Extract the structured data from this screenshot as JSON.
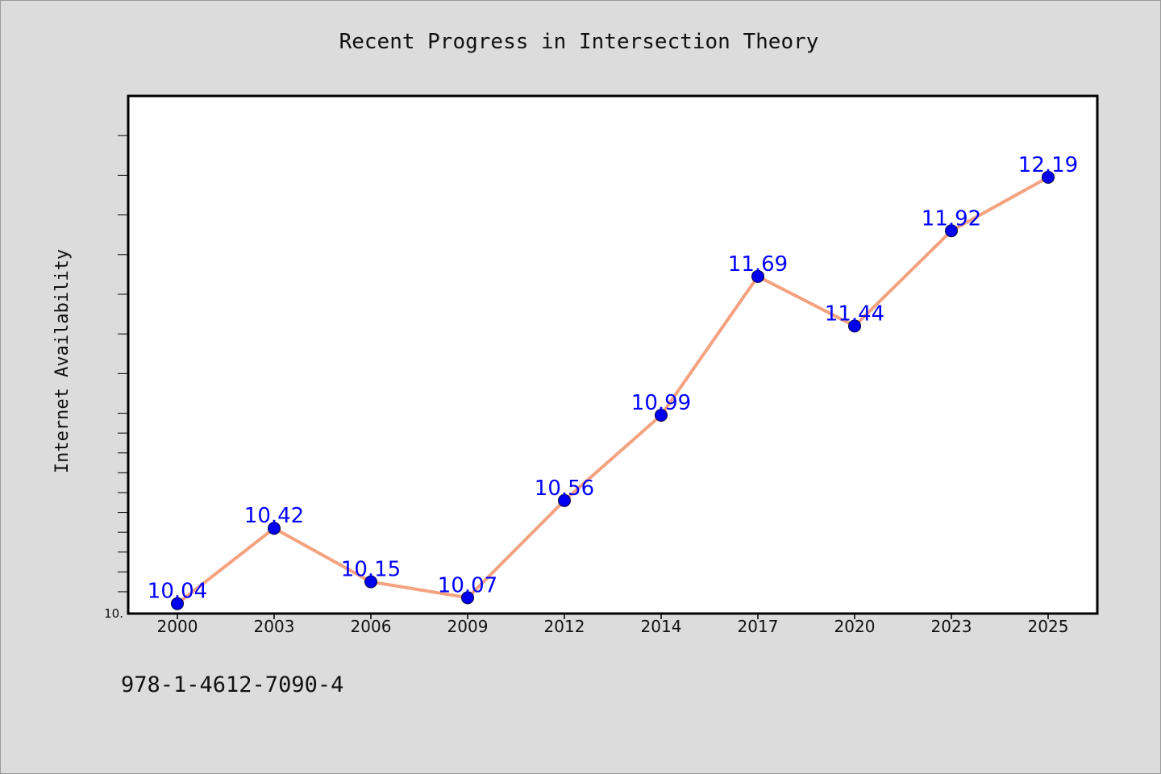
{
  "chart_data": {
    "type": "line",
    "title": "Recent Progress in Intersection Theory",
    "xlabel": "",
    "ylabel": "Internet Availability",
    "categories": [
      "2000",
      "2003",
      "2006",
      "2009",
      "2012",
      "2014",
      "2017",
      "2020",
      "2023",
      "2025"
    ],
    "series": [
      {
        "values": [
          10.04,
          10.42,
          10.15,
          10.07,
          10.56,
          10.99,
          11.69,
          11.44,
          11.92,
          12.19
        ],
        "labels": [
          "10.04",
          "10.42",
          "10.15",
          "10.07",
          "10.56",
          "10.99",
          "11.69",
          "11.44",
          "11.92",
          "12.19"
        ]
      }
    ],
    "ylim": [
      9.99,
      12.6
    ],
    "y_tick_label": "10.",
    "grid": false,
    "legend": "none",
    "colors": {
      "line": "#f4a27f",
      "marker": "#0000ee",
      "data_label": "#0000ff"
    }
  },
  "footer": {
    "isbn": "978-1-4612-7090-4"
  }
}
